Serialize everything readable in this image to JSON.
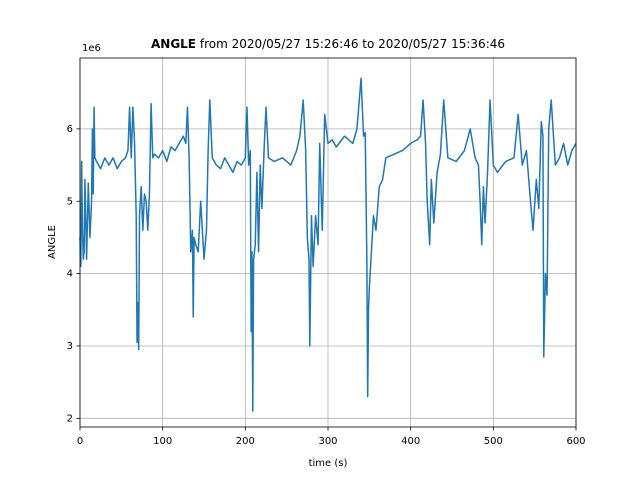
{
  "chart_data": {
    "type": "line",
    "title_bold": "ANGLE",
    "title": "from 2020/05/27 15:26:46 to 2020/05/27 15:36:46",
    "offset_label": "1e6",
    "xlabel": "time (s)",
    "ylabel": "ANGLE",
    "color": "#1f77b4",
    "grid": true,
    "xlim": [
      0,
      600
    ],
    "xticks": [
      0,
      100,
      200,
      300,
      400,
      500,
      600
    ],
    "ylim": [
      1.88,
      6.98
    ],
    "yticks": [
      2,
      3,
      4,
      5,
      6
    ],
    "x": [
      0,
      1,
      2,
      3,
      4,
      5,
      6,
      8,
      10,
      12,
      14,
      15,
      16,
      17,
      18,
      20,
      25,
      30,
      35,
      40,
      45,
      50,
      55,
      58,
      60,
      62,
      64,
      66,
      68,
      69,
      70,
      71,
      72,
      74,
      76,
      78,
      80,
      82,
      84,
      86,
      88,
      90,
      95,
      100,
      105,
      110,
      115,
      120,
      125,
      128,
      130,
      132,
      134,
      136,
      137,
      138,
      140,
      143,
      146,
      150,
      153,
      155,
      157,
      160,
      165,
      170,
      175,
      180,
      185,
      190,
      195,
      200,
      202,
      204,
      206,
      207,
      208,
      209,
      210,
      212,
      214,
      216,
      218,
      220,
      223,
      225,
      228,
      235,
      245,
      255,
      262,
      266,
      270,
      273,
      275,
      277,
      278,
      280,
      282,
      285,
      288,
      290,
      293,
      296,
      300,
      305,
      310,
      320,
      330,
      335,
      340,
      343,
      345,
      347,
      348,
      349,
      350,
      352,
      355,
      358,
      362,
      366,
      370,
      380,
      390,
      400,
      408,
      412,
      415,
      418,
      420,
      423,
      425,
      428,
      432,
      436,
      440,
      445,
      455,
      465,
      472,
      478,
      482,
      484,
      486,
      488,
      490,
      493,
      496,
      500,
      505,
      515,
      525,
      530,
      535,
      540,
      545,
      548,
      552,
      555,
      558,
      560,
      561,
      563,
      565,
      567,
      570,
      575,
      580,
      585,
      590,
      595,
      600
    ],
    "values": [
      4.5,
      4.1,
      5.55,
      4.6,
      4.2,
      4.3,
      5.3,
      4.2,
      5.25,
      4.5,
      5.0,
      6.0,
      5.1,
      6.3,
      5.6,
      5.55,
      5.45,
      5.6,
      5.5,
      5.6,
      5.45,
      5.55,
      5.6,
      5.7,
      6.3,
      5.6,
      6.3,
      5.8,
      4.8,
      3.05,
      3.6,
      2.95,
      4.8,
      5.2,
      4.6,
      5.1,
      5.0,
      4.6,
      5.1,
      6.35,
      5.6,
      5.65,
      5.6,
      5.7,
      5.55,
      5.75,
      5.7,
      5.8,
      5.9,
      5.8,
      6.3,
      5.6,
      4.3,
      4.6,
      3.4,
      4.5,
      4.4,
      4.3,
      5.0,
      4.2,
      4.6,
      5.7,
      6.4,
      5.6,
      5.5,
      5.45,
      5.6,
      5.5,
      5.4,
      5.55,
      5.5,
      5.6,
      6.3,
      5.5,
      5.7,
      3.2,
      4.3,
      2.1,
      4.2,
      4.4,
      5.4,
      4.3,
      5.5,
      4.9,
      5.8,
      6.3,
      5.6,
      5.55,
      5.6,
      5.5,
      5.7,
      5.9,
      6.4,
      5.7,
      4.5,
      4.2,
      3.0,
      4.8,
      4.1,
      4.8,
      4.4,
      5.8,
      4.6,
      6.2,
      5.8,
      5.85,
      5.75,
      5.9,
      5.8,
      6.0,
      6.7,
      5.9,
      5.95,
      4.2,
      2.3,
      3.5,
      3.8,
      4.2,
      4.8,
      4.6,
      5.2,
      5.3,
      5.6,
      5.65,
      5.7,
      5.8,
      5.85,
      5.9,
      6.4,
      5.8,
      5.0,
      4.4,
      5.3,
      4.7,
      5.4,
      5.65,
      6.4,
      5.6,
      5.55,
      5.7,
      6.0,
      5.6,
      5.5,
      5.0,
      4.4,
      5.2,
      4.7,
      5.4,
      6.4,
      5.5,
      5.4,
      5.55,
      5.6,
      6.2,
      5.5,
      5.7,
      5.0,
      4.6,
      5.3,
      4.9,
      6.1,
      5.9,
      2.85,
      4.0,
      3.7,
      6.0,
      6.4,
      5.5,
      5.6,
      5.8,
      5.5,
      5.7,
      5.8
    ]
  }
}
